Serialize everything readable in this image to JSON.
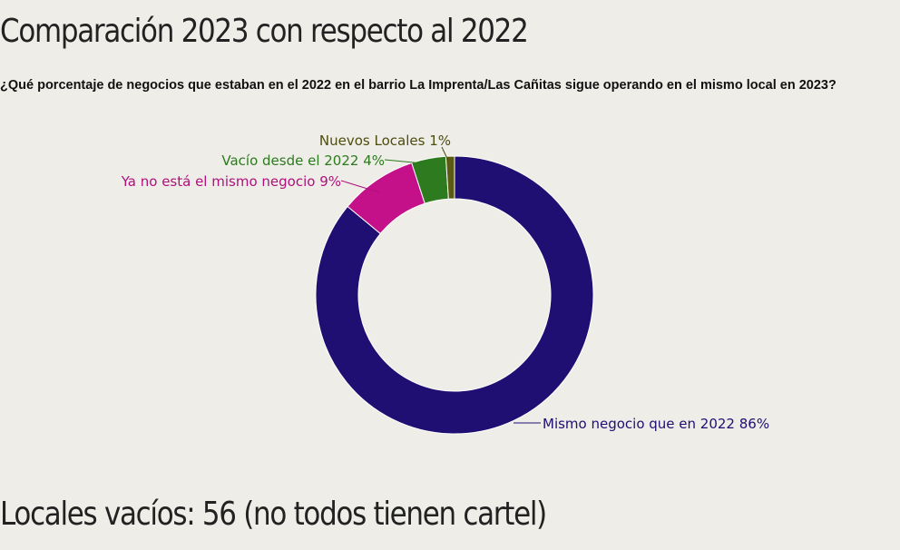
{
  "title": "Comparación 2023 con respecto al 2022",
  "question": "¿Qué porcentaje de negocios que estaban en el 2022 en el barrio La Imprenta/Las Cañitas sigue operando en el mismo local en 2023?",
  "footer": "Locales vacíos: 56 (no todos tienen cartel)",
  "chart_data": {
    "type": "pie",
    "style": "donut",
    "slices": [
      {
        "label": "Mismo negocio que en 2022",
        "value": 86,
        "display": "Mismo negocio que en 2022 86%",
        "color": "#1f0f72"
      },
      {
        "label": "Ya no está el mismo negocio",
        "value": 9,
        "display": "Ya no está el mismo negocio 9%",
        "color": "#c4118a"
      },
      {
        "label": "Vacío desde el 2022",
        "value": 4,
        "display": "Vacío desde el 2022 4%",
        "color": "#2d7a1f"
      },
      {
        "label": "Nuevos Locales",
        "value": 1,
        "display": "Nuevos Locales 1%",
        "color": "#5a5a12"
      }
    ]
  }
}
